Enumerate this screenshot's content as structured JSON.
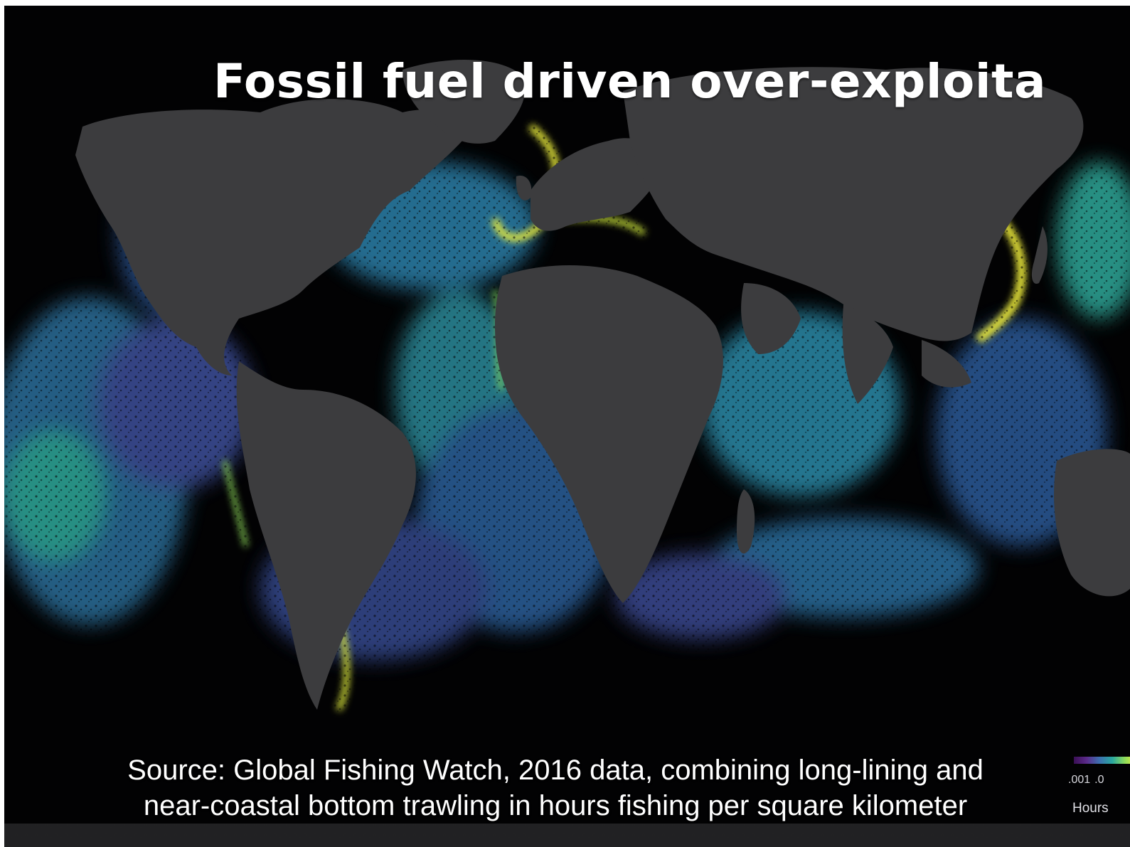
{
  "slide": {
    "title": "Fossil fuel driven over-exploita",
    "caption_line1": "Source: Global Fishing Watch, 2016 data, combining long-lining and",
    "caption_line2": "near-coastal bottom trawling in hours fishing per square kilometer"
  },
  "legend": {
    "tick_1": ".001",
    "tick_2": ".0",
    "label": "Hours"
  },
  "colors": {
    "ocean": "#020203",
    "land": "#3c3c3e",
    "fishing_low": "#5b2a8a",
    "fishing_mid": "#2aa8a0",
    "fishing_high": "#f4f03a"
  }
}
